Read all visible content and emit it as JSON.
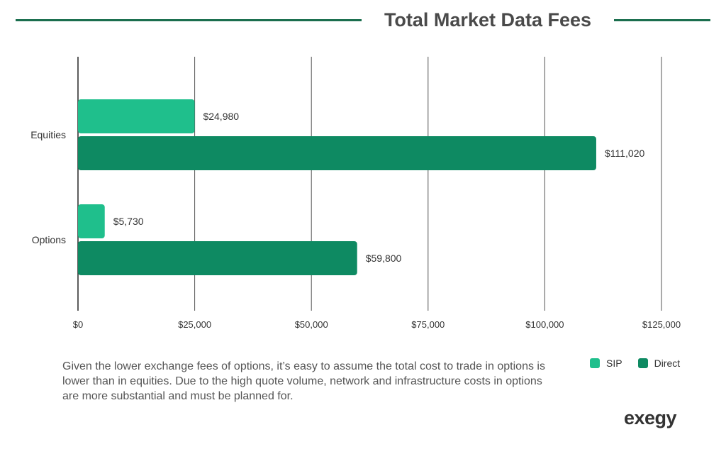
{
  "title": "Total Market Data Fees",
  "caption": "Given the lower exchange fees of options, it’s easy to assume the total cost to trade in options is lower than in equities. Due to the high quote volume, network and infrastructure costs in options are more substantial and must be planned for.",
  "logo_text": "exegy",
  "colors": {
    "sip": "#1fbf8c",
    "direct": "#0e8a62",
    "title_rule": "#1a6e4e",
    "grid": "#555555"
  },
  "chart_data": {
    "type": "bar",
    "orientation": "horizontal",
    "categories": [
      "Equities",
      "Options"
    ],
    "series": [
      {
        "name": "SIP",
        "values": [
          24980,
          5730
        ],
        "labels": [
          "$24,980",
          "$5,730"
        ]
      },
      {
        "name": "Direct",
        "values": [
          111020,
          59800
        ],
        "labels": [
          "$111,020",
          "$59,800"
        ]
      }
    ],
    "xlim": [
      0,
      125000
    ],
    "xticks": [
      0,
      25000,
      50000,
      75000,
      100000,
      125000
    ],
    "xtick_labels": [
      "$0",
      "$25,000",
      "$50,000",
      "$75,000",
      "$100,000",
      "$125,000"
    ],
    "grid": true,
    "legend_position": "bottom-right"
  }
}
